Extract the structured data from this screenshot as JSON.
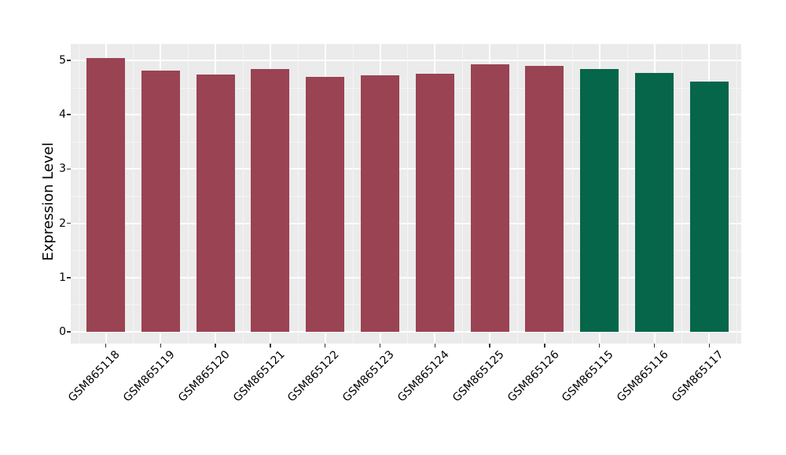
{
  "figure": {
    "background_color": "#FFFFFF",
    "panel_background_color": "#EBEBEB",
    "grid_major_color": "#FFFFFF",
    "grid_minor_color": "#F5F5F5",
    "tick_mark_color": "#333333",
    "text_color": "#000000",
    "maroon_group_color": "#9A4353",
    "green_group_color": "#066649"
  },
  "chart_data": {
    "type": "bar",
    "title": "",
    "xlabel": "",
    "ylabel": "Expression Level",
    "grid": true,
    "legend_position": "none",
    "ylim": [
      0,
      5.3
    ],
    "yticks": [
      0,
      1,
      2,
      3,
      4,
      5
    ],
    "categories": [
      "GSM865118",
      "GSM865119",
      "GSM865120",
      "GSM865121",
      "GSM865122",
      "GSM865123",
      "GSM865124",
      "GSM865125",
      "GSM865126",
      "GSM865115",
      "GSM865116",
      "GSM865117"
    ],
    "values": [
      5.04,
      4.81,
      4.74,
      4.84,
      4.7,
      4.72,
      4.76,
      4.93,
      4.9,
      4.84,
      4.77,
      4.61
    ],
    "bar_colors": [
      "#9A4353",
      "#9A4353",
      "#9A4353",
      "#9A4353",
      "#9A4353",
      "#9A4353",
      "#9A4353",
      "#9A4353",
      "#9A4353",
      "#066649",
      "#066649",
      "#066649"
    ]
  }
}
